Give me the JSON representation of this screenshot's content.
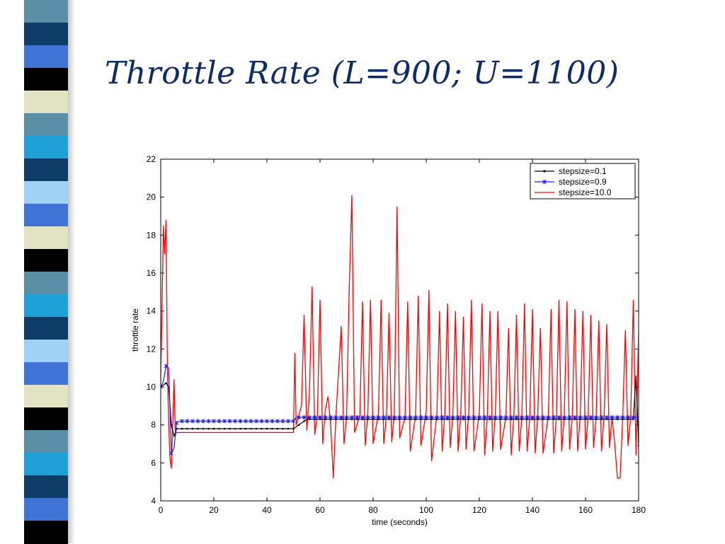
{
  "slide": {
    "title": "Throttle Rate (L=900; U=1100)",
    "stripe_colors": [
      "#5b8fa8",
      "#0d3d66",
      "#3f74d4",
      "#000000",
      "#e2e3c2",
      "#5b8fa8",
      "#1fa0d6",
      "#0d3d66",
      "#9fd2f5",
      "#3f74d4",
      "#e2e3c2",
      "#000000",
      "#5b8fa8",
      "#1fa0d6",
      "#0d3d66",
      "#9fd2f5",
      "#3f74d4",
      "#e2e3c2",
      "#000000",
      "#5b8fa8",
      "#1fa0d6",
      "#0d3d66",
      "#3f74d4",
      "#000000"
    ],
    "accent_color": "#0d2a6b"
  },
  "chart_data": {
    "type": "line",
    "title": "",
    "xlabel": "time (seconds)",
    "ylabel": "throttle rate",
    "xlim": [
      0,
      180
    ],
    "ylim": [
      4,
      22
    ],
    "xticks": [
      0,
      20,
      40,
      60,
      80,
      100,
      120,
      140,
      160,
      180
    ],
    "yticks": [
      4,
      6,
      8,
      10,
      12,
      14,
      16,
      18,
      20,
      22
    ],
    "grid": false,
    "legend_position": "top-right",
    "series": [
      {
        "name": "stepsize=0.1",
        "color": "#000000",
        "marker": "dot",
        "points": [
          [
            0,
            10.0
          ],
          [
            1,
            10.1
          ],
          [
            2,
            10.2
          ],
          [
            3,
            10.0
          ],
          [
            4,
            8.0
          ],
          [
            5,
            7.4
          ],
          [
            6,
            7.8
          ],
          [
            10,
            7.8
          ],
          [
            20,
            7.8
          ],
          [
            30,
            7.8
          ],
          [
            40,
            7.8
          ],
          [
            50,
            7.8
          ],
          [
            51,
            7.9
          ],
          [
            52,
            8.0
          ],
          [
            53,
            8.1
          ],
          [
            54,
            8.2
          ],
          [
            55,
            8.3
          ],
          [
            60,
            8.3
          ],
          [
            70,
            8.3
          ],
          [
            80,
            8.3
          ],
          [
            90,
            8.3
          ],
          [
            100,
            8.3
          ],
          [
            110,
            8.3
          ],
          [
            120,
            8.3
          ],
          [
            130,
            8.3
          ],
          [
            140,
            8.3
          ],
          [
            150,
            8.3
          ],
          [
            160,
            8.3
          ],
          [
            170,
            8.3
          ],
          [
            178,
            8.3
          ],
          [
            179,
            10.6
          ],
          [
            180,
            6.9
          ]
        ]
      },
      {
        "name": "stepsize=0.9",
        "color": "#1a1aff",
        "marker": "star",
        "points": [
          [
            0,
            10.0
          ],
          [
            1,
            10.3
          ],
          [
            2,
            11.1
          ],
          [
            3,
            11.0
          ],
          [
            4,
            6.5
          ],
          [
            5,
            6.8
          ],
          [
            6,
            8.1
          ],
          [
            7,
            8.2
          ],
          [
            10,
            8.2
          ],
          [
            20,
            8.2
          ],
          [
            30,
            8.2
          ],
          [
            40,
            8.2
          ],
          [
            50,
            8.2
          ],
          [
            51,
            8.4
          ],
          [
            52,
            8.4
          ],
          [
            60,
            8.4
          ],
          [
            70,
            8.4
          ],
          [
            80,
            8.4
          ],
          [
            90,
            8.4
          ],
          [
            100,
            8.4
          ],
          [
            110,
            8.4
          ],
          [
            120,
            8.4
          ],
          [
            130,
            8.4
          ],
          [
            140,
            8.4
          ],
          [
            150,
            8.4
          ],
          [
            160,
            8.4
          ],
          [
            170,
            8.4
          ],
          [
            180,
            8.4
          ]
        ]
      },
      {
        "name": "stepsize=10.0",
        "color": "#ff0000",
        "marker": "none",
        "points": [
          [
            0,
            10.0
          ],
          [
            0.5,
            14.5
          ],
          [
            1,
            18.5
          ],
          [
            1.5,
            17.0
          ],
          [
            2,
            18.8
          ],
          [
            2.5,
            11.0
          ],
          [
            3,
            8.0
          ],
          [
            3.5,
            6.2
          ],
          [
            4,
            5.7
          ],
          [
            4.5,
            8.0
          ],
          [
            5,
            10.4
          ],
          [
            5.5,
            7.5
          ],
          [
            6,
            7.6
          ],
          [
            50,
            7.6
          ],
          [
            50.5,
            11.8
          ],
          [
            51,
            8.0
          ],
          [
            53,
            9.0
          ],
          [
            54,
            13.8
          ],
          [
            55,
            7.7
          ],
          [
            56,
            9.6
          ],
          [
            57,
            15.3
          ],
          [
            58,
            7.5
          ],
          [
            59,
            8.5
          ],
          [
            60,
            14.6
          ],
          [
            61,
            7.0
          ],
          [
            62,
            8.8
          ],
          [
            63,
            9.5
          ],
          [
            64,
            8.0
          ],
          [
            65,
            5.2
          ],
          [
            66,
            8.5
          ],
          [
            68,
            13.2
          ],
          [
            69,
            7.0
          ],
          [
            70,
            8.4
          ],
          [
            71,
            15.3
          ],
          [
            72,
            20.1
          ],
          [
            73,
            7.6
          ],
          [
            75,
            8.5
          ],
          [
            76,
            14.5
          ],
          [
            77,
            6.9
          ],
          [
            78,
            8.6
          ],
          [
            79,
            14.6
          ],
          [
            80,
            7.0
          ],
          [
            82,
            8.6
          ],
          [
            83,
            14.6
          ],
          [
            84,
            7.0
          ],
          [
            85,
            8.5
          ],
          [
            86,
            13.9
          ],
          [
            87,
            7.1
          ],
          [
            88,
            8.6
          ],
          [
            89,
            19.5
          ],
          [
            90,
            7.3
          ],
          [
            92,
            8.4
          ],
          [
            93,
            14.5
          ],
          [
            94,
            6.6
          ],
          [
            96,
            8.5
          ],
          [
            97,
            14.8
          ],
          [
            98,
            6.9
          ],
          [
            100,
            8.7
          ],
          [
            101,
            15.1
          ],
          [
            102,
            6.1
          ],
          [
            104,
            8.5
          ],
          [
            105,
            14.0
          ],
          [
            106,
            6.6
          ],
          [
            107,
            8.6
          ],
          [
            108,
            14.4
          ],
          [
            109,
            6.8
          ],
          [
            110,
            8.5
          ],
          [
            111,
            14.0
          ],
          [
            112,
            6.6
          ],
          [
            113,
            8.5
          ],
          [
            114,
            13.7
          ],
          [
            115,
            6.7
          ],
          [
            116,
            8.6
          ],
          [
            117,
            14.6
          ],
          [
            118,
            6.6
          ],
          [
            120,
            8.6
          ],
          [
            121,
            14.4
          ],
          [
            122,
            6.4
          ],
          [
            123,
            8.4
          ],
          [
            124,
            14.0
          ],
          [
            125,
            6.6
          ],
          [
            126,
            8.5
          ],
          [
            127,
            14.0
          ],
          [
            128,
            6.7
          ],
          [
            130,
            8.4
          ],
          [
            131,
            13.1
          ],
          [
            132,
            6.4
          ],
          [
            133,
            8.5
          ],
          [
            134,
            13.8
          ],
          [
            135,
            6.6
          ],
          [
            136,
            8.4
          ],
          [
            137,
            14.4
          ],
          [
            138,
            6.6
          ],
          [
            139,
            8.4
          ],
          [
            140,
            14.1
          ],
          [
            141,
            6.5
          ],
          [
            142,
            8.5
          ],
          [
            143,
            13.1
          ],
          [
            144,
            6.5
          ],
          [
            146,
            8.5
          ],
          [
            147,
            14.1
          ],
          [
            148,
            6.5
          ],
          [
            149,
            8.4
          ],
          [
            150,
            14.6
          ],
          [
            151,
            6.6
          ],
          [
            152,
            8.5
          ],
          [
            153,
            14.5
          ],
          [
            154,
            6.7
          ],
          [
            155,
            8.4
          ],
          [
            156,
            14.1
          ],
          [
            157,
            6.6
          ],
          [
            158,
            8.5
          ],
          [
            159,
            14.0
          ],
          [
            160,
            6.7
          ],
          [
            161,
            8.5
          ],
          [
            162,
            13.8
          ],
          [
            163,
            6.8
          ],
          [
            164,
            8.4
          ],
          [
            165,
            13.5
          ],
          [
            166,
            6.6
          ],
          [
            167,
            8.5
          ],
          [
            168,
            13.3
          ],
          [
            169,
            6.8
          ],
          [
            170,
            8.4
          ],
          [
            171,
            7.0
          ],
          [
            172,
            5.2
          ],
          [
            173,
            5.2
          ],
          [
            174,
            8.4
          ],
          [
            175,
            13.0
          ],
          [
            176,
            6.9
          ],
          [
            177,
            8.4
          ],
          [
            178,
            14.6
          ],
          [
            179,
            6.4
          ],
          [
            180,
            13.1
          ]
        ]
      }
    ]
  }
}
